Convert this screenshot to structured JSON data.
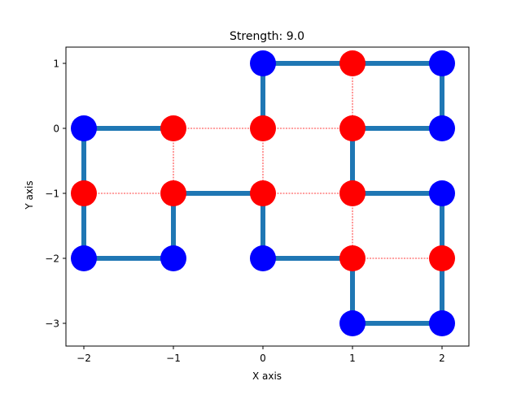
{
  "chart_data": {
    "type": "scatter",
    "title": "Strength: 9.0",
    "xlabel": "X axis",
    "ylabel": "Y axis",
    "xlim": [
      -2.2,
      2.3
    ],
    "ylim": [
      -3.35,
      1.25
    ],
    "xticks": [
      -2,
      -1,
      0,
      1,
      2
    ],
    "yticks": [
      1,
      0,
      -1,
      -2,
      -3
    ],
    "xtick_labels": [
      "−2",
      "−1",
      "0",
      "1",
      "2"
    ],
    "ytick_labels": [
      "1",
      "0",
      "−1",
      "−2",
      "−3"
    ],
    "grid": false,
    "colors": {
      "strong_edge": "#1f77b4",
      "weak_edge": "#ff0000",
      "blue_node": "#0000ff",
      "red_node": "#ff0000"
    },
    "strong_edges": [
      [
        [
          0,
          1
        ],
        [
          1,
          1
        ]
      ],
      [
        [
          1,
          1
        ],
        [
          2,
          1
        ]
      ],
      [
        [
          2,
          1
        ],
        [
          2,
          0
        ]
      ],
      [
        [
          0,
          1
        ],
        [
          0,
          0
        ]
      ],
      [
        [
          -2,
          0
        ],
        [
          -1,
          0
        ]
      ],
      [
        [
          -2,
          0
        ],
        [
          -2,
          -1
        ]
      ],
      [
        [
          -2,
          -1
        ],
        [
          -2,
          -2
        ]
      ],
      [
        [
          -2,
          -2
        ],
        [
          -1,
          -2
        ]
      ],
      [
        [
          -1,
          -2
        ],
        [
          -1,
          -1
        ]
      ],
      [
        [
          -1,
          -1
        ],
        [
          0,
          -1
        ]
      ],
      [
        [
          0,
          -1
        ],
        [
          0,
          -2
        ]
      ],
      [
        [
          0,
          -2
        ],
        [
          1,
          -2
        ]
      ],
      [
        [
          1,
          0
        ],
        [
          2,
          0
        ]
      ],
      [
        [
          1,
          0
        ],
        [
          1,
          -1
        ]
      ],
      [
        [
          1,
          -1
        ],
        [
          2,
          -1
        ]
      ],
      [
        [
          2,
          -1
        ],
        [
          2,
          -2
        ]
      ],
      [
        [
          2,
          -2
        ],
        [
          2,
          -3
        ]
      ],
      [
        [
          1,
          -3
        ],
        [
          2,
          -3
        ]
      ],
      [
        [
          1,
          -2
        ],
        [
          1,
          -3
        ]
      ]
    ],
    "weak_edges": [
      [
        [
          -1,
          0
        ],
        [
          0,
          0
        ]
      ],
      [
        [
          0,
          0
        ],
        [
          1,
          0
        ]
      ],
      [
        [
          1,
          1
        ],
        [
          1,
          0
        ]
      ],
      [
        [
          -1,
          0
        ],
        [
          -1,
          -1
        ]
      ],
      [
        [
          0,
          0
        ],
        [
          0,
          -1
        ]
      ],
      [
        [
          -2,
          -1
        ],
        [
          -1,
          -1
        ]
      ],
      [
        [
          0,
          -1
        ],
        [
          1,
          -1
        ]
      ],
      [
        [
          1,
          -1
        ],
        [
          1,
          -2
        ]
      ],
      [
        [
          1,
          -2
        ],
        [
          2,
          -2
        ]
      ]
    ],
    "nodes": [
      {
        "x": 0,
        "y": 1,
        "color": "blue"
      },
      {
        "x": 1,
        "y": 1,
        "color": "red"
      },
      {
        "x": 2,
        "y": 1,
        "color": "blue"
      },
      {
        "x": -2,
        "y": 0,
        "color": "blue"
      },
      {
        "x": -1,
        "y": 0,
        "color": "red"
      },
      {
        "x": 0,
        "y": 0,
        "color": "red"
      },
      {
        "x": 1,
        "y": 0,
        "color": "red"
      },
      {
        "x": 2,
        "y": 0,
        "color": "blue"
      },
      {
        "x": -2,
        "y": -1,
        "color": "red"
      },
      {
        "x": -1,
        "y": -1,
        "color": "red"
      },
      {
        "x": 0,
        "y": -1,
        "color": "red"
      },
      {
        "x": 1,
        "y": -1,
        "color": "red"
      },
      {
        "x": 2,
        "y": -1,
        "color": "blue"
      },
      {
        "x": -2,
        "y": -2,
        "color": "blue"
      },
      {
        "x": -1,
        "y": -2,
        "color": "blue"
      },
      {
        "x": 0,
        "y": -2,
        "color": "blue"
      },
      {
        "x": 1,
        "y": -2,
        "color": "red"
      },
      {
        "x": 2,
        "y": -2,
        "color": "red"
      },
      {
        "x": 1,
        "y": -3,
        "color": "blue"
      },
      {
        "x": 2,
        "y": -3,
        "color": "blue"
      }
    ]
  }
}
